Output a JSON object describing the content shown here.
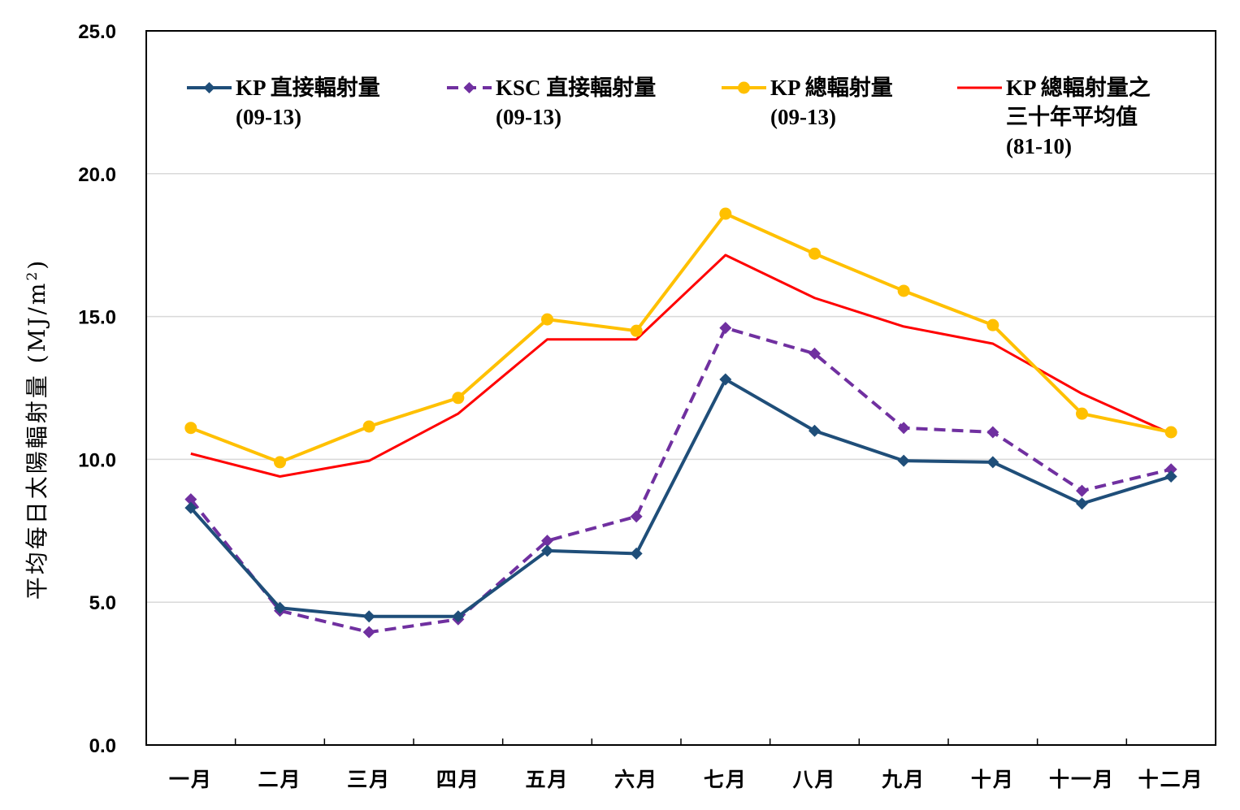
{
  "chart_data": {
    "type": "line",
    "title": "",
    "xlabel": "",
    "ylabel": "平均每日太陽輻射量 (MJ/m²)",
    "ylabel_main": "平均每日太陽輻射量 (MJ/m",
    "ylabel_sup": "2",
    "ylabel_close": ")",
    "ylim": [
      0,
      25
    ],
    "yticks": [
      "0.0",
      "5.0",
      "10.0",
      "15.0",
      "20.0",
      "25.0"
    ],
    "grid": "horizontal",
    "legend_position": "top",
    "categories": [
      "一月",
      "二月",
      "三月",
      "四月",
      "五月",
      "六月",
      "七月",
      "八月",
      "九月",
      "十月",
      "十一月",
      "十二月"
    ],
    "series": [
      {
        "name": "KP 直接輻射量 (09-13)",
        "legend_lines": [
          "KP 直接輻射量",
          "(09-13)"
        ],
        "color": "#1f4e79",
        "marker": "diamond",
        "dash": "solid",
        "values": [
          8.3,
          4.8,
          4.5,
          4.5,
          6.8,
          6.7,
          12.8,
          11.0,
          9.95,
          9.9,
          8.45,
          9.4
        ]
      },
      {
        "name": "KSC 直接輻射量 (09-13)",
        "legend_lines": [
          "KSC 直接輻射量",
          "(09-13)"
        ],
        "color": "#7030a0",
        "marker": "diamond",
        "dash": "dashed",
        "values": [
          8.6,
          4.7,
          3.95,
          4.4,
          7.15,
          8.0,
          14.6,
          13.7,
          11.1,
          10.95,
          8.9,
          9.65
        ]
      },
      {
        "name": "KP 總輻射量 (09-13)",
        "legend_lines": [
          "KP 總輻射量",
          "(09-13)"
        ],
        "color": "#ffc000",
        "marker": "circle",
        "dash": "solid",
        "values": [
          11.1,
          9.9,
          11.15,
          12.15,
          14.9,
          14.5,
          18.6,
          17.2,
          15.9,
          14.7,
          11.6,
          10.95
        ]
      },
      {
        "name": "KP 總輻射量之三十年平均值 (81-10)",
        "legend_lines": [
          "KP 總輻射量之",
          "三十年平均值",
          "(81-10)"
        ],
        "color": "#ff0000",
        "marker": "none",
        "dash": "solid",
        "values": [
          10.2,
          9.4,
          9.95,
          11.6,
          14.2,
          14.2,
          17.15,
          15.65,
          14.65,
          14.05,
          12.3,
          10.9
        ]
      }
    ]
  }
}
